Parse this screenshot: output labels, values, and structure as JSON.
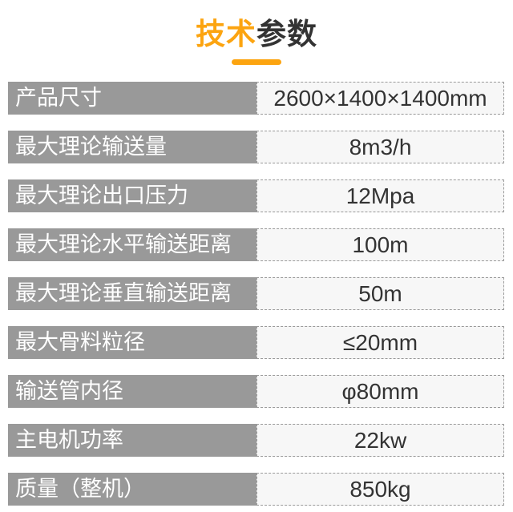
{
  "header": {
    "title_highlight": "技术",
    "title_rest": "参数"
  },
  "colors": {
    "accent_orange": "#FCA410",
    "title_dark": "#333333",
    "bar_gray": "#999999",
    "value_bg": "#F7F7F7",
    "value_text": "#333333",
    "border_dashed": "#9A9A9A"
  },
  "table": {
    "rows": [
      {
        "label": "产品尺寸",
        "value": "2600×1400×1400mm"
      },
      {
        "label": "最大理论输送量",
        "value": "8m3/h"
      },
      {
        "label": "最大理论出口压力",
        "value": "12Mpa"
      },
      {
        "label": "最大理论水平输送距离",
        "value": "100m"
      },
      {
        "label": "最大理论垂直输送距离",
        "value": "50m"
      },
      {
        "label": "最大骨料粒径",
        "value": "≤20mm"
      },
      {
        "label": "输送管内径",
        "value": "φ80mm"
      },
      {
        "label": "主电机功率",
        "value": "22kw"
      },
      {
        "label": "质量（整机）",
        "value": "850kg"
      }
    ]
  }
}
